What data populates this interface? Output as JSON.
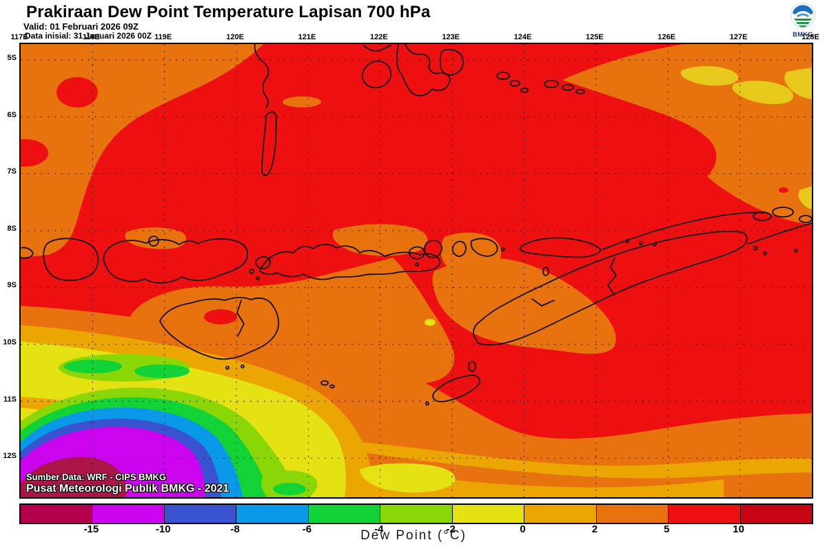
{
  "header": {
    "title": "Prakiraan Dew Point Temperature Lapisan 700 hPa",
    "valid": "Valid: 01 Februari 2026 09Z",
    "init": "Data inisial: 31 Januari 2026 00Z"
  },
  "logo": {
    "text": "BMKG"
  },
  "axes": {
    "lon": [
      "117E",
      "118E",
      "119E",
      "120E",
      "121E",
      "122E",
      "123E",
      "124E",
      "125E",
      "126E",
      "127E",
      "128E"
    ],
    "lat": [
      "5S",
      "6S",
      "7S",
      "8S",
      "9S",
      "10S",
      "11S",
      "12S"
    ]
  },
  "colorbar": {
    "label": "Dew Point (°C)",
    "ticks": [
      "-15",
      "-10",
      "-8",
      "-6",
      "-4",
      "-2",
      "0",
      "2",
      "5",
      "10"
    ],
    "colors": [
      "#b5004e",
      "#cc03ef",
      "#3952cf",
      "#0a99e8",
      "#12d336",
      "#8ad606",
      "#e5e214",
      "#eba602",
      "#e8720e",
      "#ee1010",
      "#c70314"
    ]
  },
  "map_colors": {
    "red": "#ee1010",
    "orange": "#e8720e",
    "amber": "#eba602",
    "yellow": "#e5e214",
    "gold": "#e7c91c",
    "yellow_green": "#8ad606",
    "green": "#12d336",
    "cyan": "#0a99e8",
    "blue": "#3952cf",
    "magenta": "#cc03ef",
    "crimson": "#ab1548",
    "coast": "#0d0d0d"
  },
  "source": {
    "line1": "Sumber Data: WRF - CIPS BMKG",
    "line2": "Pusat Meteorologi Publik BMKG - 2021"
  }
}
